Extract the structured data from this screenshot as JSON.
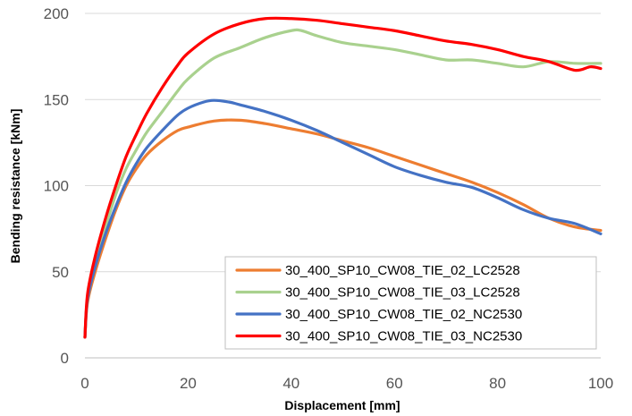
{
  "chart_data": {
    "type": "line",
    "title": "",
    "xlabel": "Displacement [mm]",
    "ylabel": "Bending resistance [kNm]",
    "xlim": [
      0,
      100
    ],
    "ylim": [
      0,
      200
    ],
    "xticks": [
      0,
      20,
      40,
      60,
      80,
      100
    ],
    "yticks": [
      0,
      50,
      100,
      150,
      200
    ],
    "grid": "horizontal",
    "legend_position": "bottom-right",
    "series": [
      {
        "name": "30_400_SP10_CW08_TIE_02_LC2528",
        "color": "#ED7D31",
        "x": [
          0,
          0.5,
          2,
          4,
          6,
          8,
          10,
          12,
          15,
          18,
          20,
          25,
          30,
          35,
          40,
          45,
          50,
          55,
          60,
          65,
          70,
          75,
          80,
          85,
          90,
          95,
          100
        ],
        "y": [
          12,
          32,
          50,
          69,
          86,
          100,
          110,
          118,
          126,
          132,
          134,
          137.5,
          138,
          136,
          133,
          130,
          126,
          122,
          117,
          112,
          107,
          102,
          96,
          89,
          81,
          76,
          74
        ]
      },
      {
        "name": "30_400_SP10_CW08_TIE_03_LC2528",
        "color": "#A9D18E",
        "x": [
          0,
          0.5,
          2,
          4,
          6,
          8,
          10,
          12,
          15,
          18,
          20,
          25,
          30,
          35,
          40,
          42,
          45,
          50,
          55,
          60,
          65,
          70,
          75,
          80,
          85,
          90,
          95,
          100
        ],
        "y": [
          12,
          35,
          55,
          76,
          95,
          110,
          121,
          131,
          143,
          155,
          162,
          174,
          180,
          186,
          190,
          190,
          187,
          183,
          181,
          179,
          176,
          173,
          173,
          171,
          169,
          172,
          171,
          171
        ]
      },
      {
        "name": "30_400_SP10_CW08_TIE_02_NC2530",
        "color": "#4472C4",
        "x": [
          0,
          0.5,
          2,
          4,
          6,
          8,
          10,
          12,
          15,
          18,
          20,
          23,
          25,
          28,
          30,
          35,
          40,
          45,
          50,
          55,
          60,
          65,
          70,
          75,
          80,
          85,
          90,
          95,
          100
        ],
        "y": [
          12,
          34,
          53,
          72,
          88,
          102,
          113,
          122,
          132,
          141,
          145,
          148.5,
          149.5,
          148.5,
          147,
          143,
          138,
          132,
          125,
          118,
          111,
          106,
          102,
          99,
          93,
          86,
          81,
          78,
          72
        ]
      },
      {
        "name": "30_400_SP10_CW08_TIE_03_NC2530",
        "color": "#FF0000",
        "x": [
          0,
          0.5,
          2,
          4,
          6,
          8,
          10,
          12,
          15,
          18,
          20,
          25,
          30,
          35,
          40,
          45,
          50,
          55,
          60,
          65,
          70,
          75,
          80,
          85,
          90,
          95,
          98,
          100
        ],
        "y": [
          12,
          37,
          59,
          81,
          100,
          117,
          130,
          142,
          157,
          170,
          177,
          188,
          194,
          197,
          197,
          196,
          194,
          192,
          190,
          187,
          184,
          182,
          179,
          175,
          172,
          167,
          169,
          168
        ]
      }
    ]
  }
}
